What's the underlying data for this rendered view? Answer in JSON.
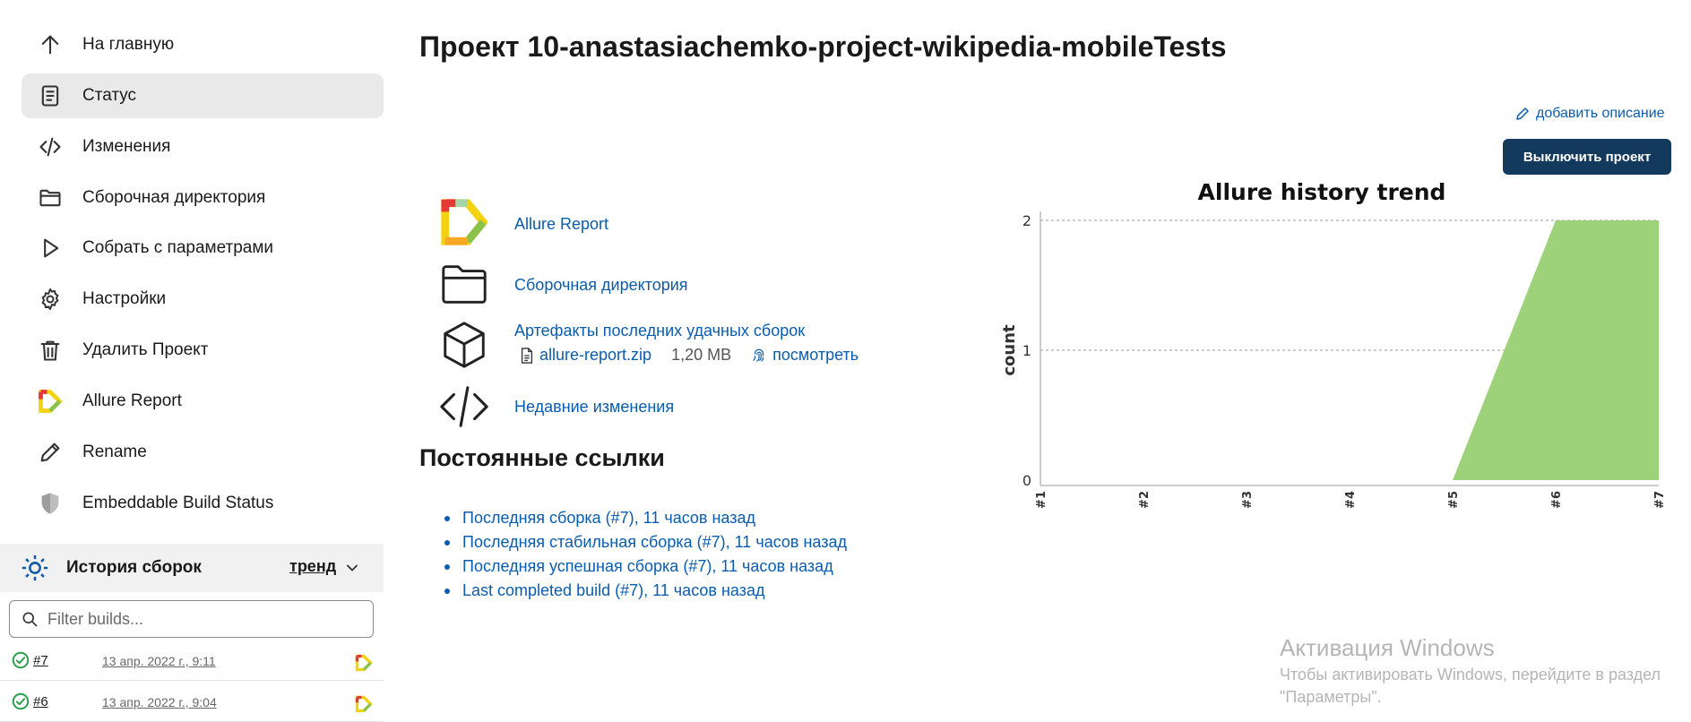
{
  "sidebar": {
    "items": [
      {
        "label": "На главную",
        "icon": "arrow-up-icon"
      },
      {
        "label": "Статус",
        "icon": "document-icon"
      },
      {
        "label": "Изменения",
        "icon": "code-icon"
      },
      {
        "label": "Сборочная директория",
        "icon": "folder-icon"
      },
      {
        "label": "Собрать с параметрами",
        "icon": "play-icon"
      },
      {
        "label": "Настройки",
        "icon": "gear-icon"
      },
      {
        "label": "Удалить Проект",
        "icon": "trash-icon"
      },
      {
        "label": "Allure Report",
        "icon": "allure-logo-icon"
      },
      {
        "label": "Rename",
        "icon": "pencil-icon"
      },
      {
        "label": "Embeddable Build Status",
        "icon": "shield-icon"
      }
    ],
    "active_index": 1
  },
  "history": {
    "title": "История сборок",
    "trend_label": "тренд",
    "filter_placeholder": "Filter builds...",
    "builds": [
      {
        "number": "#7",
        "date": "13 апр. 2022 г., 9:11"
      },
      {
        "number": "#6",
        "date": "13 апр. 2022 г., 9:04"
      }
    ]
  },
  "main": {
    "title": "Проект 10-anastasiachemko-project-wikipedia-mobileTests",
    "add_description": "добавить описание",
    "disable_button": "Выключить проект",
    "links": {
      "allure": "Allure Report",
      "workspace": "Сборочная директория",
      "artifacts": "Артефакты последних удачных сборок",
      "changes": "Недавние изменения"
    },
    "artifact": {
      "file": "allure-report.zip",
      "size": "1,20 MB",
      "view": "посмотреть"
    },
    "permalinks_title": "Постоянные ссылки",
    "permalinks": [
      "Последняя сборка (#7), 11 часов назад",
      "Последняя стабильная сборка (#7), 11 часов назад",
      "Последняя успешная сборка (#7), 11 часов назад",
      "Last completed build (#7), 11 часов назад"
    ]
  },
  "chart_data": {
    "type": "area",
    "title": "Allure history trend",
    "ylabel": "count",
    "xlabel": "",
    "categories": [
      "#1",
      "#2",
      "#3",
      "#4",
      "#5",
      "#6",
      "#7"
    ],
    "series": [
      {
        "values": [
          0,
          0,
          0,
          0,
          0,
          2,
          2
        ],
        "color": "#9ed27a"
      }
    ],
    "ylim": [
      0,
      2
    ],
    "yticks": [
      "0",
      "1",
      "2"
    ],
    "grid": true
  },
  "watermark": {
    "title": "Активация Windows",
    "line1": "Чтобы активировать Windows, перейдите в раздел",
    "line2": "\"Параметры\"."
  },
  "colors": {
    "link": "#0b5cad",
    "primary_button": "#13395d",
    "success": "#2e9e4f",
    "chart_fill": "#9ed27a"
  }
}
